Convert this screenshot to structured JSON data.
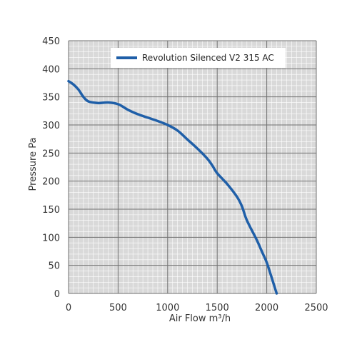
{
  "chart_data": {
    "type": "line",
    "title": "",
    "xlabel": "Air Flow m³/h",
    "ylabel": "Pressure Pa",
    "xlim": [
      0,
      2500
    ],
    "ylim": [
      0,
      450
    ],
    "x_ticks": [
      0,
      500,
      1000,
      1500,
      2000,
      2500
    ],
    "y_ticks": [
      0,
      50,
      100,
      150,
      200,
      250,
      300,
      350,
      400,
      450
    ],
    "grid": true,
    "legend_position": "top",
    "series": [
      {
        "name": "Revolution Silenced V2 315 AC",
        "color": "#1f5fa8",
        "x": [
          0,
          50,
          100,
          150,
          200,
          300,
          400,
          500,
          600,
          700,
          800,
          900,
          1000,
          1100,
          1200,
          1300,
          1400,
          1450,
          1500,
          1600,
          1700,
          1750,
          1800,
          1900,
          1950,
          2000,
          2050,
          2100
        ],
        "y": [
          378,
          372,
          363,
          350,
          342,
          339,
          340,
          337,
          327,
          319,
          313,
          307,
          300,
          290,
          274,
          258,
          240,
          228,
          214,
          195,
          172,
          155,
          130,
          95,
          75,
          55,
          28,
          0
        ]
      }
    ]
  },
  "colors": {
    "plot_background": "#d9d9d9",
    "major_grid": "#707070",
    "minor_grid": "#ffffff"
  }
}
